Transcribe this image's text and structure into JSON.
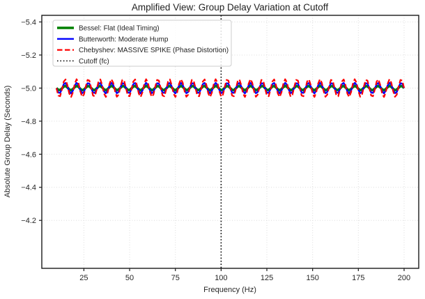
{
  "chart_data": {
    "type": "line",
    "title": "Amplified View: Group Delay Variation at Cutoff",
    "xlabel": "Frequency (Hz)",
    "ylabel": "Absolute Group Delay (Seconds)",
    "x_ticks": [
      25,
      50,
      75,
      100,
      125,
      150,
      175,
      200
    ],
    "y_ticks": [
      -5.4,
      -5.2,
      -5.0,
      -4.8,
      -4.6,
      -4.4,
      -4.2
    ],
    "y_tick_labels": [
      "−5.4",
      "−5.2",
      "−5.0",
      "−4.8",
      "−4.6",
      "−4.4",
      "−4.2"
    ],
    "xlim": [
      2,
      208
    ],
    "ylim": {
      "top": -5.44,
      "bottom": -3.91,
      "inverted": true
    },
    "grid": {
      "visible": true,
      "style": "dotted",
      "color": "#dcdcdc"
    },
    "axis_color": "#1a1a1a",
    "tick_color": "#1a1a1a",
    "series": [
      {
        "name": "Bessel: Flat (Ideal Timing)",
        "color": "#008000",
        "line_style": "solid",
        "line_width": 3.6,
        "waveform": "sine",
        "center": -5.0,
        "amplitude": 0.013,
        "period_hz": 6.3333,
        "x_start": 10,
        "x_end": 200,
        "x_step": 1
      },
      {
        "name": "Butterworth: Moderate Hump",
        "color": "#0000ff",
        "line_style": "solid",
        "line_width": 2.4,
        "waveform": "sine",
        "center": -5.0,
        "amplitude": 0.032,
        "period_hz": 6.3333,
        "x_start": 10,
        "x_end": 200,
        "x_step": 1
      },
      {
        "name": "Chebyshev: MASSIVE SPIKE (Phase Distortion)",
        "color": "#ff0000",
        "line_style": "dashed",
        "line_width": 2.2,
        "waveform": "sine",
        "center": -5.0,
        "amplitude": 0.054,
        "period_hz": 6.3333,
        "x_start": 10,
        "x_end": 200,
        "x_step": 1
      }
    ],
    "cutoff_line": {
      "x": 100,
      "label": "Cutoff (fc)",
      "color": "#000000",
      "line_style": "dotted",
      "line_width": 1.6
    },
    "legend": {
      "position": "upper-left",
      "background": "rgba(255,255,255,0.85)",
      "border_color": "#cccccc",
      "entries": [
        {
          "label": "Bessel: Flat (Ideal Timing)",
          "color": "#008000",
          "style": "solid",
          "width": 3.6
        },
        {
          "label": "Butterworth: Moderate Hump",
          "color": "#0000ff",
          "style": "solid",
          "width": 2.4
        },
        {
          "label": "Chebyshev: MASSIVE SPIKE (Phase Distortion)",
          "color": "#ff0000",
          "style": "dashed",
          "width": 2.2
        },
        {
          "label": "Cutoff (fc)",
          "color": "#000000",
          "style": "dotted",
          "width": 1.5
        }
      ]
    }
  }
}
